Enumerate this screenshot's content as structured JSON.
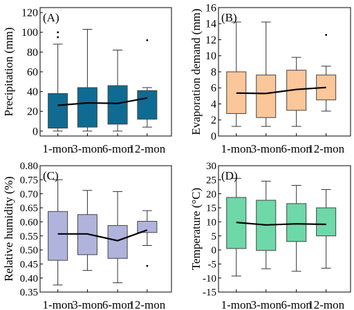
{
  "chart_data": [
    {
      "type": "box",
      "panel_label": "(A)",
      "ylabel": "Precipitation (mm)",
      "categories": [
        "1-mon",
        "3-mon",
        "6-mon",
        "12-mon"
      ],
      "tick_labels": [
        "1-mon",
        "3-mon",
        "6-mon",
        "12-mon"
      ],
      "ylim": [
        -5,
        125
      ],
      "yticks": [
        0,
        20,
        40,
        60,
        80,
        100,
        120
      ],
      "ytick_labels": [
        "0",
        "20",
        "40",
        "60",
        "80",
        "100",
        "120"
      ],
      "fill": "#0f6b92",
      "boxes": [
        {
          "whisker_low": 0,
          "q1": 3,
          "q3": 38,
          "whisker_high": 88,
          "mean": 26,
          "outliers": [
            95,
            100
          ]
        },
        {
          "whisker_low": 0,
          "q1": 4,
          "q3": 44,
          "whisker_high": 103,
          "mean": 28.5,
          "outliers": []
        },
        {
          "whisker_low": 0,
          "q1": 7,
          "q3": 46,
          "whisker_high": 82,
          "mean": 28,
          "outliers": []
        },
        {
          "whisker_low": 4,
          "q1": 12,
          "q3": 41,
          "whisker_high": 44,
          "mean": 33.5,
          "outliers": [
            92
          ]
        }
      ]
    },
    {
      "type": "box",
      "panel_label": "(B)",
      "ylabel": "Evaporation demand (mm)",
      "categories": [
        "1-mon",
        "3-mon",
        "6-mon",
        "12-mon"
      ],
      "tick_labels": [
        "1-mon",
        "3-mon",
        "6-mon",
        "12-mon"
      ],
      "ylim": [
        0,
        16
      ],
      "yticks": [
        0,
        2,
        4,
        6,
        8,
        10,
        12,
        14,
        16
      ],
      "ytick_labels": [
        "0",
        "2",
        "4",
        "6",
        "8",
        "10",
        "12",
        "14",
        "16"
      ],
      "fill": "#fbc699",
      "boxes": [
        {
          "whisker_low": 1.2,
          "q1": 2.8,
          "q3": 8.0,
          "whisker_high": 14.2,
          "mean": 5.35,
          "outliers": []
        },
        {
          "whisker_low": 1.2,
          "q1": 2.3,
          "q3": 7.6,
          "whisker_high": 14.2,
          "mean": 5.3,
          "outliers": []
        },
        {
          "whisker_low": 1.2,
          "q1": 3.2,
          "q3": 8.2,
          "whisker_high": 9.8,
          "mean": 5.8,
          "outliers": []
        },
        {
          "whisker_low": 3.1,
          "q1": 4.5,
          "q3": 7.6,
          "whisker_high": 8.7,
          "mean": 6.05,
          "outliers": [
            12.6
          ]
        }
      ]
    },
    {
      "type": "box",
      "panel_label": "(C)",
      "ylabel": "Relative humidity (%)",
      "categories": [
        "1-mon",
        "3-mon",
        "6-mon",
        "12-mon"
      ],
      "tick_labels": [
        "1-mon",
        "3-mon",
        "6-mon",
        "12-mon"
      ],
      "ylim": [
        0.35,
        0.8
      ],
      "yticks": [
        0.35,
        0.4,
        0.45,
        0.5,
        0.55,
        0.6,
        0.65,
        0.7,
        0.75,
        0.8
      ],
      "ytick_labels": [
        "0.35",
        "0.40",
        "0.45",
        "0.50",
        "0.55",
        "0.60",
        "0.65",
        "0.70",
        "0.75",
        "0.80"
      ],
      "fill": "#b0b4dc",
      "boxes": [
        {
          "whisker_low": 0.375,
          "q1": 0.463,
          "q3": 0.637,
          "whisker_high": 0.75,
          "mean": 0.557,
          "outliers": []
        },
        {
          "whisker_low": 0.427,
          "q1": 0.483,
          "q3": 0.626,
          "whisker_high": 0.712,
          "mean": 0.557,
          "outliers": []
        },
        {
          "whisker_low": 0.383,
          "q1": 0.47,
          "q3": 0.587,
          "whisker_high": 0.708,
          "mean": 0.533,
          "outliers": []
        },
        {
          "whisker_low": 0.516,
          "q1": 0.562,
          "q3": 0.602,
          "whisker_high": 0.64,
          "mean": 0.571,
          "outliers": [
            0.443
          ]
        }
      ]
    },
    {
      "type": "box",
      "panel_label": "(D)",
      "ylabel": "Temperature (°C)",
      "categories": [
        "1-mon",
        "3-mon",
        "6-mon",
        "12-mon"
      ],
      "tick_labels": [
        "1-mon",
        "3-mon",
        "6-mon",
        "12-mon"
      ],
      "ylim": [
        -15,
        30
      ],
      "yticks": [
        -15,
        -10,
        -5,
        0,
        5,
        10,
        15,
        20,
        25,
        30
      ],
      "ytick_labels": [
        "-15",
        "-10",
        "-5",
        "0",
        "5",
        "10",
        "15",
        "20",
        "25",
        "30"
      ],
      "fill": "#6ed8a8",
      "boxes": [
        {
          "whisker_low": -9.3,
          "q1": 0.5,
          "q3": 18.7,
          "whisker_high": 25.5,
          "mean": 9.8,
          "outliers": []
        },
        {
          "whisker_low": -6.7,
          "q1": -0.2,
          "q3": 17.7,
          "whisker_high": 24.5,
          "mean": 8.9,
          "outliers": []
        },
        {
          "whisker_low": -7.6,
          "q1": 3.0,
          "q3": 16.5,
          "whisker_high": 23.0,
          "mean": 9.3,
          "outliers": []
        },
        {
          "whisker_low": -6.5,
          "q1": 5.0,
          "q3": 15.0,
          "whisker_high": 21.5,
          "mean": 9.1,
          "outliers": []
        }
      ]
    }
  ]
}
